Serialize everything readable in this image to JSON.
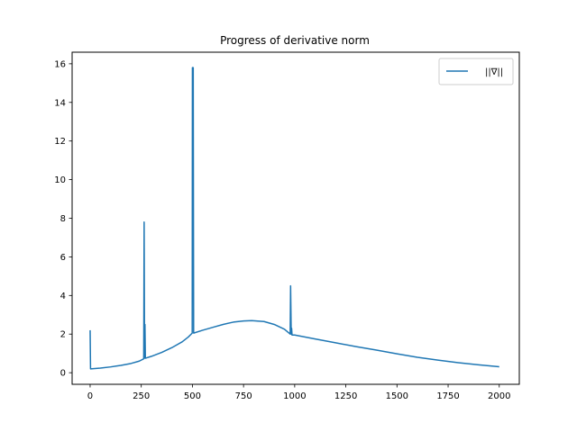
{
  "chart_data": {
    "type": "line",
    "title": "Progress of derivative norm",
    "xlabel": "",
    "ylabel": "",
    "xlim": [
      -88,
      2098
    ],
    "ylim": [
      -0.6,
      16.6
    ],
    "xticks": [
      0,
      250,
      500,
      750,
      1000,
      1250,
      1500,
      1750,
      2000
    ],
    "yticks": [
      0,
      2,
      4,
      6,
      8,
      10,
      12,
      14,
      16
    ],
    "grid": false,
    "legend": "top-right",
    "series": [
      {
        "name": "||∇||",
        "color": "#1f77b4",
        "points": [
          [
            0,
            2.2
          ],
          [
            2,
            0.2
          ],
          [
            50,
            0.24
          ],
          [
            100,
            0.3
          ],
          [
            150,
            0.38
          ],
          [
            200,
            0.48
          ],
          [
            240,
            0.6
          ],
          [
            262,
            0.72
          ],
          [
            264,
            7.8
          ],
          [
            266,
            0.75
          ],
          [
            268,
            2.5
          ],
          [
            270,
            0.75
          ],
          [
            300,
            0.85
          ],
          [
            350,
            1.05
          ],
          [
            400,
            1.3
          ],
          [
            450,
            1.6
          ],
          [
            480,
            1.85
          ],
          [
            499,
            2.05
          ],
          [
            500,
            15.8
          ],
          [
            502,
            15.8
          ],
          [
            503,
            8.0
          ],
          [
            504,
            15.8
          ],
          [
            506,
            2.05
          ],
          [
            550,
            2.2
          ],
          [
            600,
            2.35
          ],
          [
            650,
            2.5
          ],
          [
            700,
            2.62
          ],
          [
            750,
            2.68
          ],
          [
            790,
            2.7
          ],
          [
            850,
            2.65
          ],
          [
            900,
            2.5
          ],
          [
            950,
            2.25
          ],
          [
            978,
            2.0
          ],
          [
            980,
            4.5
          ],
          [
            983,
            2.0
          ],
          [
            985,
            2.3
          ],
          [
            987,
            1.95
          ],
          [
            1000,
            1.95
          ],
          [
            1100,
            1.75
          ],
          [
            1200,
            1.55
          ],
          [
            1300,
            1.35
          ],
          [
            1400,
            1.17
          ],
          [
            1500,
            0.98
          ],
          [
            1600,
            0.8
          ],
          [
            1700,
            0.65
          ],
          [
            1800,
            0.52
          ],
          [
            1900,
            0.41
          ],
          [
            2000,
            0.31
          ]
        ]
      }
    ]
  }
}
